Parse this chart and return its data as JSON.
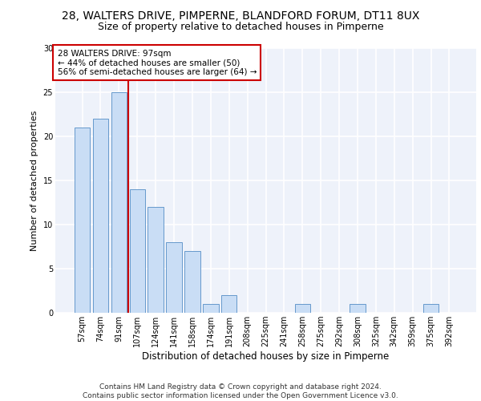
{
  "title1": "28, WALTERS DRIVE, PIMPERNE, BLANDFORD FORUM, DT11 8UX",
  "title2": "Size of property relative to detached houses in Pimperne",
  "xlabel": "Distribution of detached houses by size in Pimperne",
  "ylabel": "Number of detached properties",
  "categories": [
    "57sqm",
    "74sqm",
    "91sqm",
    "107sqm",
    "124sqm",
    "141sqm",
    "158sqm",
    "174sqm",
    "191sqm",
    "208sqm",
    "225sqm",
    "241sqm",
    "258sqm",
    "275sqm",
    "292sqm",
    "308sqm",
    "325sqm",
    "342sqm",
    "359sqm",
    "375sqm",
    "392sqm"
  ],
  "values": [
    21,
    22,
    25,
    14,
    12,
    8,
    7,
    1,
    2,
    0,
    0,
    0,
    1,
    0,
    0,
    1,
    0,
    0,
    0,
    1,
    0
  ],
  "bar_color": "#c9ddf5",
  "bar_edge_color": "#6699cc",
  "vline_x_idx": 2,
  "vline_color": "#cc0000",
  "annotation_text": "28 WALTERS DRIVE: 97sqm\n← 44% of detached houses are smaller (50)\n56% of semi-detached houses are larger (64) →",
  "annotation_box_color": "#ffffff",
  "annotation_box_edge": "#cc0000",
  "ylim": [
    0,
    30
  ],
  "yticks": [
    0,
    5,
    10,
    15,
    20,
    25,
    30
  ],
  "footnote": "Contains HM Land Registry data © Crown copyright and database right 2024.\nContains public sector information licensed under the Open Government Licence v3.0.",
  "bg_color": "#eef2fa",
  "grid_color": "#ffffff",
  "title1_fontsize": 10,
  "title2_fontsize": 9,
  "xlabel_fontsize": 8.5,
  "ylabel_fontsize": 8,
  "tick_fontsize": 7,
  "footnote_fontsize": 6.5,
  "annot_fontsize": 7.5
}
